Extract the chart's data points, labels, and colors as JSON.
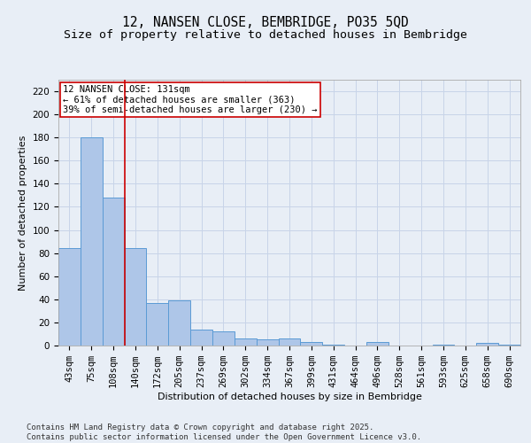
{
  "title_line1": "12, NANSEN CLOSE, BEMBRIDGE, PO35 5QD",
  "title_line2": "Size of property relative to detached houses in Bembridge",
  "xlabel": "Distribution of detached houses by size in Bembridge",
  "ylabel": "Number of detached properties",
  "categories": [
    "43sqm",
    "75sqm",
    "108sqm",
    "140sqm",
    "172sqm",
    "205sqm",
    "237sqm",
    "269sqm",
    "302sqm",
    "334sqm",
    "367sqm",
    "399sqm",
    "431sqm",
    "464sqm",
    "496sqm",
    "528sqm",
    "561sqm",
    "593sqm",
    "625sqm",
    "658sqm",
    "690sqm"
  ],
  "values": [
    84,
    180,
    128,
    84,
    37,
    39,
    14,
    12,
    6,
    5,
    6,
    3,
    1,
    0,
    3,
    0,
    0,
    1,
    0,
    2,
    1
  ],
  "bar_color": "#aec6e8",
  "bar_edge_color": "#5b9bd5",
  "grid_color": "#c8d4e8",
  "background_color": "#e8eef6",
  "vline_color": "#cc0000",
  "vline_position": 2.5,
  "annotation_text": "12 NANSEN CLOSE: 131sqm\n← 61% of detached houses are smaller (363)\n39% of semi-detached houses are larger (230) →",
  "annotation_box_facecolor": "#ffffff",
  "annotation_border_color": "#cc0000",
  "footer_line1": "Contains HM Land Registry data © Crown copyright and database right 2025.",
  "footer_line2": "Contains public sector information licensed under the Open Government Licence v3.0.",
  "ylim": [
    0,
    230
  ],
  "yticks": [
    0,
    20,
    40,
    60,
    80,
    100,
    120,
    140,
    160,
    180,
    200,
    220
  ],
  "title_fontsize": 10.5,
  "subtitle_fontsize": 9.5,
  "axis_label_fontsize": 8,
  "tick_fontsize": 7.5,
  "annotation_fontsize": 7.5,
  "footer_fontsize": 6.5
}
